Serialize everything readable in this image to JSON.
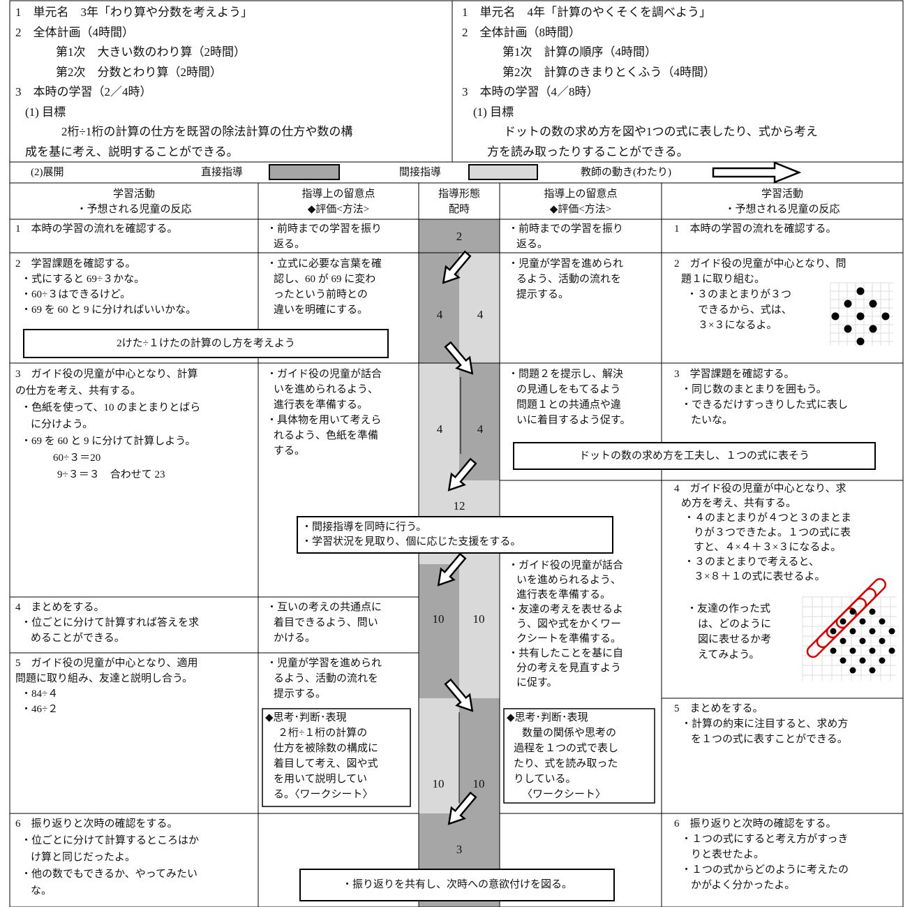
{
  "unit_left": [
    "1　単元名　3年「わり算や分数を考えよう」",
    "2　全体計画（4時間）",
    "第1次　大きい数のわり算（2時間）",
    "第2次　分数とわり算（2時間）",
    "3　本時の学習（2／4時）",
    "(1) 目標",
    "2桁÷1桁の計算の仕方を既習の除法計算の仕方や数の構",
    "成を基に考え、説明することができる。"
  ],
  "unit_right": [
    "1　単元名　4年「計算のやくそくを調べよう」",
    "2　全体計画（8時間）",
    "第1次　計算の順序（4時間）",
    "第2次　計算のきまりとくふう（4時間）",
    "3　本時の学習（4／8時）",
    "(1) 目標",
    "ドットの数の求め方を図や1つの式に表したり、式から考え",
    "方を読み取ったりすることができる。"
  ],
  "legend": {
    "section": "(2)展開",
    "direct": "直接指導",
    "indirect": "間接指導",
    "teacher": "教師の動き(わたり)"
  },
  "table": {
    "headers": [
      [
        "学習活動",
        "・予想される児童の反応"
      ],
      [
        "指導上の留意点",
        "◆評価<方法>"
      ],
      [
        "指導形態",
        "配時"
      ],
      [
        "指導上の留意点",
        "◆評価<方法>"
      ],
      [
        "学習活動",
        "・予想される児童の反応"
      ]
    ],
    "left_activities": [
      [
        "1　本時の学習の流れを確認する。"
      ],
      [
        "2　学習課題を確認する。",
        "・式にすると 69÷３かな。",
        "・60÷３はできるけど。",
        "・69 を 60 と 9 に分ければいいかな。"
      ],
      [
        "3　ガイド役の児童が中心となり、計算",
        "の仕方を考え、共有する。",
        "・色紙を使って、10 のまとまりとばら",
        "に分けよう。",
        "・69 を 60 と 9 に分けて計算しよう。",
        "60÷３＝20",
        "9÷３＝３　合わせて 23"
      ],
      [
        "4　まとめをする。",
        "・位ごとに分けて計算すれば答えを求",
        "めることができる。"
      ],
      [
        "5　ガイド役の児童が中心となり、適用",
        "問題に取り組み、友達と説明し合う。",
        "・84÷４",
        "・46÷２"
      ],
      [
        "6　振り返りと次時の確認をする。",
        "・位ごとに分けて計算するところはか",
        "け算と同じだったよ。",
        "・他の数でもできるか、やってみたい",
        "な。"
      ]
    ],
    "left_notes": [
      [
        "・前時までの学習を振り",
        "返る。"
      ],
      [
        "・立式に必要な言葉を確",
        "認し、60 が 69 に変わ",
        "ったという前時との",
        "違いを明確にする。"
      ],
      [
        "・ガイド役の児童が話合",
        "いを進められるよう、",
        "進行表を準備する。",
        "・具体物を用いて考えら",
        "れるよう、色紙を準備",
        "する。"
      ],
      [
        "・互いの考えの共通点に",
        "着目できるよう、問い",
        "かける。"
      ],
      [
        "・児童が学習を進められ",
        "るよう、活動の流れを",
        "提示する。"
      ]
    ],
    "left_evaluation": [
      "◆思考･判断･表現",
      "２桁÷１桁の計算の",
      "仕方を被除数の構成に",
      "着目して考え、図や式",
      "を用いて説明してい",
      "る。〈ワークシート〉"
    ],
    "right_notes": [
      [
        "・前時までの学習を振り",
        "返る。"
      ],
      [
        "・児童が学習を進められ",
        "るよう、活動の流れを",
        "提示する。"
      ],
      [
        "・問題２を提示し、解決",
        "の見通しをもてるよう",
        "問題１との共通点や違",
        "いに着目するよう促す。"
      ],
      [
        "・ガイド役の児童が話合",
        "いを進められるよう、",
        "進行表を準備する。",
        "・友達の考えを表せるよ",
        "う、図や式をかくワー",
        "クシートを準備する。",
        "・共有したことを基に自",
        "分の考えを見直すよう",
        "に促す。"
      ]
    ],
    "right_evaluation": [
      "◆思考･判断･表現",
      "数量の関係や思考の",
      "過程を１つの式で表し",
      "たり、式を読み取った",
      "りしている。",
      "〈ワークシート〉"
    ],
    "right_activities": [
      [
        "1　本時の学習の流れを確認する。"
      ],
      [
        "2　ガイド役の児童が中心となり、問",
        "題１に取り組む。",
        "・３のまとまりが３つ",
        "できるから、式は、",
        "３×３になるよ。"
      ],
      [
        "3　学習課題を確認する。",
        "・同じ数のまとまりを囲もう。",
        "・できるだけすっきりした式に表し",
        "たいな。"
      ],
      [
        "4　ガイド役の児童が中心となり、求",
        "め方を考え、共有する。",
        "・４のまとまりが４つと３のまとま",
        "りが３つできたよ。１つの式に表",
        "すと、４×４＋３×３になるよ。",
        "・３のまとまりで考えると、",
        "３×８＋１の式に表せるよ。"
      ],
      [
        "・友達の作った式",
        "は、どのように",
        "図に表せるか考",
        "えてみよう。"
      ],
      [
        "5　まとめをする。",
        "・計算の約束に注目すると、求め方",
        "を１つの式に表すことができる。"
      ],
      [
        "6　振り返りと次時の確認をする。",
        "・１つの式にすると考え方がすっき",
        "りと表せたよ。",
        "・１つの式からどのように考えたの",
        "かがよく分かったよ。"
      ]
    ],
    "times": [
      [
        2
      ],
      [
        4,
        4
      ],
      [
        4,
        4
      ],
      [
        12
      ],
      [
        10,
        10
      ],
      [
        10,
        10
      ],
      [
        3
      ]
    ],
    "boxes": [
      [
        "2けた÷１けたの計算のし方を考えよう"
      ],
      [
        "ドットの数の求め方を工夫し、１つの式に表そう"
      ],
      [
        "・間接指導を同時に行う。",
        "・学習状況を見取り、個に応じた支援をする。"
      ],
      [
        "・振り返りを共有し、次時への意欲付けを図る。"
      ]
    ]
  }
}
